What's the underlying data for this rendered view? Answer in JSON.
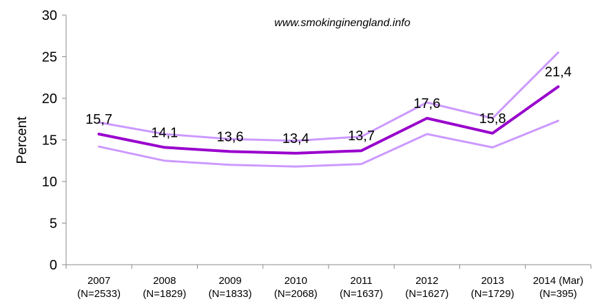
{
  "chart_data": {
    "type": "line",
    "watermark": "www.smokinginengland.info",
    "ylabel": "Percent",
    "xlabel": "",
    "ylim": [
      0,
      30
    ],
    "yticks": [
      0,
      5,
      10,
      15,
      20,
      25,
      30
    ],
    "grid": false,
    "categories": [
      [
        "2007",
        "(N=2533)"
      ],
      [
        "2008",
        "(N=1829)"
      ],
      [
        "2009",
        "(N=1833)"
      ],
      [
        "2010",
        "(N=2068)"
      ],
      [
        "2011",
        "(N=1637)"
      ],
      [
        "2012",
        "(N=1627)"
      ],
      [
        "2013",
        "(N=1729)"
      ],
      [
        "2014 (Mar)",
        "(N=395)"
      ]
    ],
    "series": [
      {
        "role": "estimate",
        "color": "#9900cc",
        "values": [
          15.7,
          14.1,
          13.6,
          13.4,
          13.7,
          17.6,
          15.8,
          21.4
        ],
        "labels": [
          "15,7",
          "14,1",
          "13,6",
          "13,4",
          "13,7",
          "17,6",
          "15,8",
          "21,4"
        ]
      },
      {
        "role": "upper",
        "color": "#cc99ff",
        "values": [
          17.1,
          15.7,
          15.1,
          14.9,
          15.4,
          19.5,
          17.6,
          25.5
        ]
      },
      {
        "role": "lower",
        "color": "#cc99ff",
        "values": [
          14.2,
          12.5,
          12.0,
          11.8,
          12.1,
          15.7,
          14.1,
          17.3
        ]
      }
    ]
  }
}
